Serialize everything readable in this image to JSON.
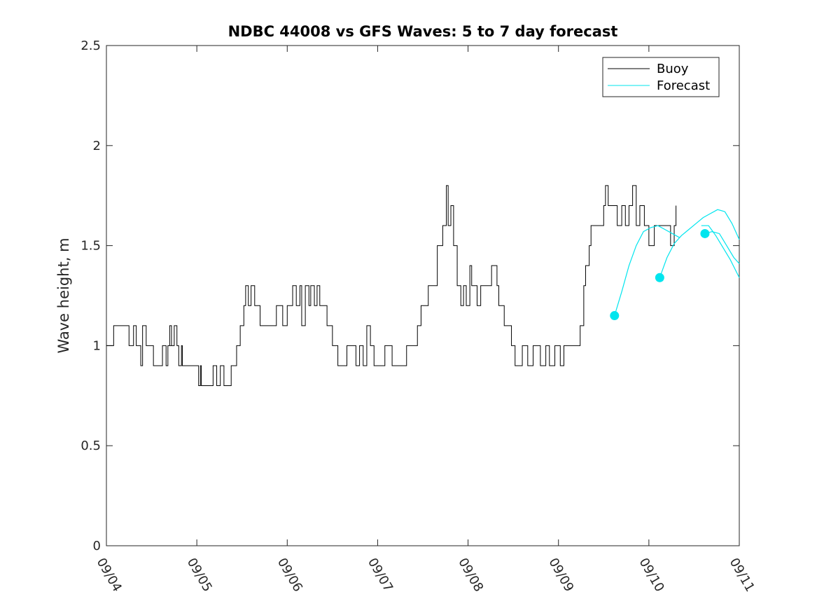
{
  "chart_data": {
    "type": "line",
    "title": "NDBC 44008 vs GFS Waves: 5 to 7 day forecast",
    "xlabel": "",
    "ylabel": "Wave height, m",
    "xlim": [
      0,
      7
    ],
    "ylim": [
      0,
      2.5
    ],
    "yticks": [
      0,
      0.5,
      1,
      1.5,
      2,
      2.5
    ],
    "ytick_labels": [
      "0",
      "0.5",
      "1",
      "1.5",
      "2",
      "2.5"
    ],
    "xticks": [
      0,
      1,
      2,
      3,
      4,
      5,
      6,
      7
    ],
    "xtick_labels": [
      "09/04",
      "09/05",
      "09/06",
      "09/07",
      "09/08",
      "09/09",
      "09/10",
      "09/11"
    ],
    "legend": {
      "placement": "top-right",
      "entries": [
        "Buoy",
        "Forecast"
      ]
    },
    "colors": {
      "buoy": "#000000",
      "forecast": "#00e5ee",
      "axes": "#262626"
    },
    "series": [
      {
        "name": "Buoy",
        "style": "step",
        "x": [
          0,
          0.08,
          0.25,
          0.3,
          0.33,
          0.38,
          0.4,
          0.44,
          0.47,
          0.52,
          0.55,
          0.62,
          0.66,
          0.68,
          0.72,
          0.7,
          0.75,
          0.78,
          0.8,
          0.83,
          0.84,
          0.86,
          0.88,
          0.95,
          1.0,
          1.02,
          1.04,
          1.05,
          1.07,
          1.14,
          1.18,
          1.22,
          1.26,
          1.3,
          1.38,
          1.44,
          1.48,
          1.52,
          1.54,
          1.57,
          1.6,
          1.64,
          1.7,
          1.8,
          1.85,
          1.88,
          1.95,
          2.0,
          2.04,
          2.06,
          2.1,
          2.14,
          2.16,
          2.2,
          2.24,
          2.26,
          2.3,
          2.33,
          2.36,
          2.4,
          2.44,
          2.5,
          2.56,
          2.62,
          2.66,
          2.7,
          2.76,
          2.8,
          2.84,
          2.88,
          2.92,
          2.96,
          3.0,
          3.04,
          3.08,
          3.16,
          3.2,
          3.28,
          3.32,
          3.44,
          3.48,
          3.56,
          3.62,
          3.66,
          3.72,
          3.76,
          3.78,
          3.81,
          3.84,
          3.88,
          3.92,
          3.95,
          3.98,
          4.02,
          4.04,
          4.06,
          4.1,
          4.14,
          4.2,
          4.26,
          4.32,
          4.34,
          4.4,
          4.48,
          4.52,
          4.56,
          4.6,
          4.62,
          4.66,
          4.72,
          4.8,
          4.86,
          4.9,
          4.96,
          5.02,
          5.06,
          5.1,
          5.16,
          5.24,
          5.28,
          5.3,
          5.34,
          5.36,
          5.4,
          5.44,
          5.48,
          5.5,
          5.52,
          5.55,
          5.6,
          5.65,
          5.7,
          5.74,
          5.78,
          5.82,
          5.86,
          5.9,
          5.95,
          6.0,
          6.06,
          6.1,
          6.16,
          6.2,
          6.24,
          6.28,
          6.3
        ],
        "y": [
          1.0,
          1.1,
          1.0,
          1.1,
          1.0,
          0.9,
          1.1,
          1.0,
          1.0,
          0.9,
          0.9,
          1.0,
          0.9,
          1.0,
          1.1,
          1.0,
          1.1,
          1.0,
          0.9,
          1.0,
          0.9,
          0.9,
          0.9,
          0.9,
          0.9,
          0.8,
          0.9,
          0.8,
          0.8,
          0.8,
          0.9,
          0.8,
          0.9,
          0.8,
          0.9,
          1.0,
          1.1,
          1.2,
          1.3,
          1.2,
          1.3,
          1.2,
          1.1,
          1.1,
          1.1,
          1.2,
          1.1,
          1.2,
          1.2,
          1.3,
          1.2,
          1.3,
          1.1,
          1.3,
          1.2,
          1.3,
          1.2,
          1.3,
          1.2,
          1.2,
          1.1,
          1.0,
          0.9,
          0.9,
          1.0,
          1.0,
          0.9,
          1.0,
          0.9,
          1.1,
          1.0,
          0.9,
          0.9,
          0.9,
          1.0,
          0.9,
          0.9,
          0.9,
          1.0,
          1.1,
          1.2,
          1.3,
          1.3,
          1.5,
          1.6,
          1.8,
          1.6,
          1.7,
          1.5,
          1.3,
          1.2,
          1.3,
          1.2,
          1.4,
          1.3,
          1.3,
          1.2,
          1.3,
          1.3,
          1.4,
          1.3,
          1.2,
          1.1,
          1.0,
          0.9,
          0.9,
          1.0,
          1.0,
          0.9,
          1.0,
          0.9,
          1.0,
          0.9,
          1.0,
          0.9,
          1.0,
          1.0,
          1.0,
          1.1,
          1.3,
          1.4,
          1.5,
          1.6,
          1.6,
          1.6,
          1.6,
          1.7,
          1.8,
          1.7,
          1.7,
          1.6,
          1.7,
          1.6,
          1.7,
          1.8,
          1.6,
          1.7,
          1.6,
          1.5,
          1.6,
          1.6,
          1.6,
          1.6,
          1.5,
          1.6,
          1.7
        ]
      },
      {
        "name": "Forecast",
        "style": "line",
        "marker": "filled-circle",
        "runs": [
          {
            "x": [
              5.62,
              5.7,
              5.78,
              5.86,
              5.94,
              6.02,
              6.1,
              6.18,
              6.26,
              6.34
            ],
            "y": [
              1.15,
              1.27,
              1.4,
              1.5,
              1.57,
              1.59,
              1.6,
              1.58,
              1.56,
              1.54
            ]
          },
          {
            "x": [
              6.12,
              6.2,
              6.28,
              6.36,
              6.44,
              6.52,
              6.6,
              6.68,
              6.76,
              6.84
            ],
            "y": [
              1.34,
              1.44,
              1.51,
              1.55,
              1.58,
              1.61,
              1.64,
              1.66,
              1.68,
              1.67
            ]
          },
          {
            "x": [
              6.62,
              6.7,
              6.78,
              6.86,
              6.94,
              7.0
            ],
            "y": [
              1.56,
              1.57,
              1.56,
              1.5,
              1.44,
              1.41
            ]
          },
          {
            "x": [
              6.58,
              6.66,
              6.74,
              6.82,
              6.9,
              7.0
            ],
            "y": [
              1.6,
              1.6,
              1.55,
              1.49,
              1.43,
              1.34
            ]
          },
          {
            "x": [
              6.84,
              6.92,
              7.0
            ],
            "y": [
              1.67,
              1.61,
              1.53
            ]
          }
        ],
        "markers": {
          "x": [
            5.62,
            6.12,
            6.62
          ],
          "y": [
            1.15,
            1.34,
            1.56
          ]
        }
      }
    ]
  }
}
